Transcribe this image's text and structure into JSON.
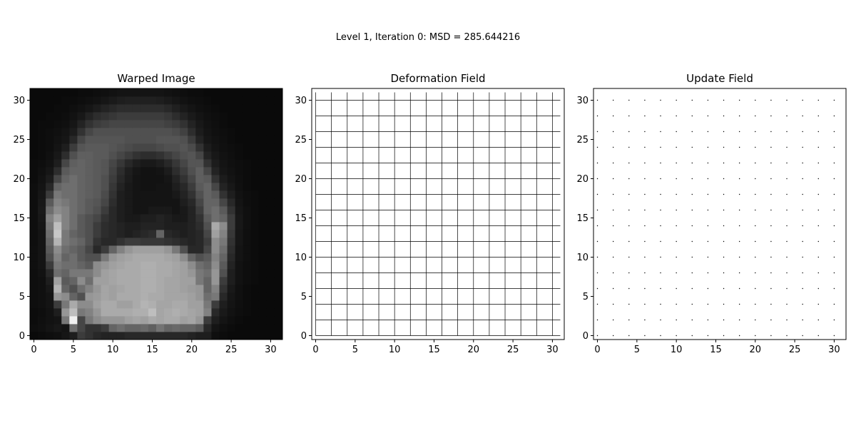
{
  "figure": {
    "suptitle": "Level 1, Iteration 0: MSD = 285.644216"
  },
  "chart_data": [
    {
      "type": "heatmap",
      "title": "Warped Image",
      "colormap": "gray",
      "xlim": [
        -0.5,
        31.5
      ],
      "ylim": [
        -0.5,
        31.5
      ],
      "xticks": [
        0,
        5,
        10,
        15,
        20,
        25,
        30
      ],
      "yticks": [
        0,
        5,
        10,
        15,
        20,
        25,
        30
      ],
      "rows": 32,
      "cols": 32,
      "value_range": [
        0,
        255
      ],
      "grid": [
        [
          10,
          12,
          14,
          16,
          22,
          30,
          60,
          50,
          40,
          35,
          35,
          35,
          40,
          40,
          40,
          40,
          40,
          40,
          40,
          40,
          35,
          30,
          30,
          15,
          12,
          10,
          10,
          10,
          10,
          10,
          10,
          10
        ],
        [
          14,
          16,
          20,
          24,
          20,
          110,
          70,
          50,
          50,
          60,
          100,
          110,
          100,
          100,
          105,
          95,
          115,
          100,
          105,
          100,
          100,
          90,
          40,
          20,
          15,
          12,
          10,
          10,
          10,
          10,
          10,
          10
        ],
        [
          12,
          15,
          18,
          20,
          120,
          240,
          70,
          120,
          140,
          150,
          150,
          150,
          160,
          165,
          160,
          170,
          165,
          170,
          170,
          160,
          165,
          150,
          60,
          30,
          20,
          15,
          12,
          10,
          10,
          10,
          10,
          10
        ],
        [
          12,
          14,
          18,
          30,
          150,
          190,
          120,
          130,
          150,
          170,
          170,
          170,
          170,
          175,
          175,
          190,
          165,
          170,
          175,
          170,
          165,
          160,
          130,
          40,
          25,
          18,
          14,
          12,
          10,
          10,
          10,
          10
        ],
        [
          14,
          16,
          20,
          60,
          120,
          170,
          140,
          140,
          160,
          170,
          170,
          160,
          160,
          170,
          180,
          175,
          165,
          165,
          170,
          170,
          160,
          160,
          120,
          60,
          30,
          20,
          15,
          12,
          10,
          10,
          10,
          10
        ],
        [
          14,
          16,
          20,
          150,
          140,
          100,
          80,
          150,
          155,
          165,
          160,
          170,
          170,
          170,
          175,
          170,
          170,
          165,
          165,
          165,
          160,
          150,
          110,
          120,
          40,
          22,
          16,
          12,
          10,
          10,
          10,
          10
        ],
        [
          14,
          16,
          24,
          180,
          100,
          80,
          110,
          130,
          150,
          165,
          160,
          165,
          170,
          170,
          175,
          175,
          170,
          165,
          165,
          160,
          155,
          150,
          100,
          130,
          50,
          25,
          16,
          12,
          10,
          10,
          10,
          10
        ],
        [
          14,
          16,
          30,
          160,
          90,
          100,
          140,
          110,
          160,
          160,
          165,
          170,
          170,
          170,
          175,
          175,
          170,
          165,
          165,
          160,
          160,
          120,
          100,
          150,
          60,
          30,
          18,
          14,
          12,
          10,
          10,
          10
        ],
        [
          14,
          18,
          40,
          110,
          100,
          120,
          120,
          120,
          140,
          160,
          165,
          170,
          170,
          170,
          175,
          175,
          170,
          170,
          165,
          160,
          150,
          120,
          110,
          150,
          80,
          30,
          18,
          14,
          12,
          10,
          10,
          10
        ],
        [
          15,
          20,
          60,
          120,
          110,
          110,
          100,
          90,
          140,
          150,
          160,
          165,
          170,
          170,
          175,
          175,
          170,
          170,
          165,
          160,
          140,
          110,
          100,
          140,
          90,
          35,
          18,
          14,
          12,
          10,
          10,
          10
        ],
        [
          15,
          20,
          80,
          130,
          100,
          110,
          90,
          80,
          80,
          120,
          150,
          160,
          165,
          170,
          170,
          170,
          170,
          165,
          160,
          140,
          100,
          80,
          90,
          130,
          100,
          40,
          20,
          15,
          12,
          10,
          10,
          10
        ],
        [
          15,
          20,
          90,
          140,
          110,
          100,
          90,
          70,
          40,
          60,
          100,
          130,
          150,
          160,
          160,
          160,
          160,
          150,
          120,
          80,
          40,
          40,
          70,
          140,
          110,
          45,
          20,
          15,
          12,
          10,
          10,
          10
        ],
        [
          14,
          20,
          100,
          180,
          120,
          110,
          100,
          80,
          50,
          40,
          40,
          50,
          60,
          60,
          55,
          55,
          55,
          50,
          45,
          40,
          35,
          40,
          60,
          140,
          120,
          50,
          22,
          15,
          12,
          10,
          10,
          10
        ],
        [
          14,
          20,
          110,
          200,
          120,
          100,
          90,
          80,
          60,
          45,
          40,
          35,
          30,
          35,
          40,
          45,
          100,
          40,
          35,
          30,
          35,
          40,
          70,
          160,
          130,
          55,
          22,
          15,
          12,
          10,
          10,
          10
        ],
        [
          14,
          22,
          120,
          190,
          130,
          110,
          90,
          80,
          60,
          45,
          40,
          35,
          30,
          30,
          35,
          35,
          35,
          30,
          30,
          30,
          35,
          45,
          80,
          170,
          140,
          60,
          24,
          16,
          12,
          10,
          10,
          10
        ],
        [
          14,
          24,
          130,
          160,
          130,
          110,
          90,
          80,
          70,
          50,
          40,
          30,
          25,
          25,
          30,
          30,
          35,
          30,
          25,
          25,
          35,
          50,
          90,
          110,
          100,
          60,
          24,
          16,
          12,
          10,
          10,
          10
        ],
        [
          14,
          26,
          110,
          140,
          130,
          110,
          100,
          90,
          80,
          60,
          40,
          30,
          25,
          20,
          20,
          25,
          25,
          25,
          20,
          25,
          35,
          60,
          100,
          110,
          90,
          50,
          22,
          16,
          12,
          10,
          10,
          10
        ],
        [
          14,
          24,
          90,
          130,
          120,
          110,
          100,
          90,
          85,
          70,
          45,
          30,
          25,
          20,
          20,
          20,
          20,
          20,
          20,
          30,
          40,
          70,
          100,
          100,
          70,
          40,
          20,
          14,
          12,
          10,
          10,
          10
        ],
        [
          14,
          22,
          60,
          120,
          110,
          110,
          100,
          95,
          90,
          75,
          50,
          30,
          25,
          20,
          20,
          20,
          20,
          20,
          25,
          35,
          50,
          80,
          100,
          90,
          50,
          30,
          18,
          14,
          12,
          10,
          10,
          10
        ],
        [
          14,
          20,
          40,
          100,
          110,
          110,
          100,
          95,
          90,
          80,
          55,
          35,
          25,
          20,
          18,
          18,
          20,
          20,
          30,
          40,
          60,
          90,
          100,
          70,
          35,
          24,
          16,
          12,
          10,
          10,
          10,
          10
        ],
        [
          12,
          18,
          28,
          70,
          100,
          110,
          100,
          95,
          90,
          80,
          60,
          40,
          28,
          20,
          18,
          18,
          18,
          22,
          35,
          50,
          70,
          95,
          90,
          50,
          28,
          20,
          15,
          12,
          10,
          10,
          10,
          10
        ],
        [
          12,
          16,
          22,
          45,
          90,
          100,
          100,
          95,
          90,
          85,
          65,
          45,
          30,
          22,
          18,
          18,
          20,
          28,
          45,
          60,
          80,
          95,
          70,
          35,
          22,
          18,
          14,
          12,
          10,
          10,
          10,
          10
        ],
        [
          12,
          14,
          18,
          30,
          70,
          95,
          100,
          95,
          90,
          85,
          70,
          55,
          40,
          30,
          25,
          25,
          30,
          40,
          55,
          70,
          85,
          85,
          50,
          28,
          20,
          16,
          14,
          12,
          10,
          10,
          10,
          10
        ],
        [
          10,
          12,
          16,
          24,
          45,
          80,
          95,
          95,
          90,
          90,
          80,
          70,
          60,
          50,
          45,
          45,
          50,
          60,
          70,
          80,
          85,
          70,
          35,
          24,
          18,
          15,
          12,
          10,
          10,
          10,
          10,
          10
        ],
        [
          10,
          12,
          14,
          20,
          30,
          60,
          85,
          90,
          90,
          90,
          85,
          80,
          75,
          70,
          70,
          70,
          75,
          80,
          80,
          85,
          75,
          50,
          28,
          20,
          16,
          14,
          12,
          10,
          10,
          10,
          10,
          10
        ],
        [
          10,
          12,
          14,
          18,
          22,
          40,
          70,
          85,
          85,
          85,
          85,
          85,
          80,
          80,
          80,
          80,
          85,
          85,
          85,
          80,
          60,
          35,
          22,
          18,
          15,
          12,
          10,
          10,
          10,
          10,
          10,
          10
        ],
        [
          10,
          12,
          14,
          16,
          20,
          28,
          50,
          70,
          80,
          80,
          80,
          80,
          80,
          80,
          80,
          80,
          80,
          80,
          75,
          65,
          45,
          28,
          20,
          16,
          14,
          12,
          10,
          10,
          10,
          10,
          10,
          10
        ],
        [
          10,
          12,
          12,
          14,
          16,
          22,
          35,
          50,
          60,
          65,
          70,
          70,
          70,
          70,
          70,
          70,
          70,
          65,
          60,
          50,
          35,
          24,
          18,
          15,
          12,
          10,
          10,
          10,
          10,
          10,
          10,
          10
        ],
        [
          10,
          10,
          12,
          12,
          14,
          18,
          24,
          35,
          45,
          50,
          55,
          60,
          60,
          60,
          60,
          60,
          60,
          55,
          45,
          35,
          26,
          20,
          16,
          14,
          12,
          10,
          10,
          10,
          10,
          10,
          10,
          10
        ],
        [
          10,
          10,
          10,
          12,
          12,
          15,
          18,
          22,
          28,
          35,
          40,
          45,
          45,
          45,
          45,
          45,
          45,
          40,
          32,
          25,
          20,
          16,
          14,
          12,
          10,
          10,
          10,
          10,
          10,
          10,
          10,
          10
        ],
        [
          10,
          10,
          10,
          10,
          12,
          12,
          14,
          16,
          18,
          22,
          26,
          30,
          32,
          32,
          32,
          32,
          30,
          26,
          22,
          18,
          15,
          14,
          12,
          10,
          10,
          10,
          10,
          10,
          10,
          10,
          10,
          10
        ],
        [
          10,
          10,
          10,
          10,
          10,
          10,
          12,
          12,
          14,
          16,
          18,
          20,
          20,
          20,
          20,
          20,
          20,
          18,
          16,
          14,
          12,
          12,
          10,
          10,
          10,
          10,
          10,
          10,
          10,
          10,
          10,
          10
        ]
      ]
    },
    {
      "type": "line",
      "title": "Deformation Field",
      "description_kind": "grid",
      "xlim": [
        -0.5,
        31.5
      ],
      "ylim": [
        -0.5,
        31.5
      ],
      "xticks": [
        0,
        5,
        10,
        15,
        20,
        25,
        30
      ],
      "yticks": [
        0,
        5,
        10,
        15,
        20,
        25,
        30
      ],
      "vertical_lines_x": [
        0,
        2,
        4,
        6,
        8,
        10,
        12,
        14,
        16,
        18,
        20,
        22,
        24,
        26,
        28,
        30
      ],
      "horizontal_lines_y": [
        0,
        2,
        4,
        6,
        8,
        10,
        12,
        14,
        16,
        18,
        20,
        22,
        24,
        26,
        28,
        30
      ],
      "line_extent": [
        0,
        31
      ]
    },
    {
      "type": "scatter",
      "title": "Update Field",
      "xlim": [
        -0.5,
        31.5
      ],
      "ylim": [
        -0.5,
        31.5
      ],
      "xticks": [
        0,
        5,
        10,
        15,
        20,
        25,
        30
      ],
      "yticks": [
        0,
        5,
        10,
        15,
        20,
        25,
        30
      ],
      "x_positions": [
        0,
        2,
        4,
        6,
        8,
        10,
        12,
        14,
        16,
        18,
        20,
        22,
        24,
        26,
        28,
        30
      ],
      "y_positions": [
        0,
        2,
        4,
        6,
        8,
        10,
        12,
        14,
        16,
        18,
        20,
        22,
        24,
        26,
        28,
        30
      ]
    }
  ]
}
